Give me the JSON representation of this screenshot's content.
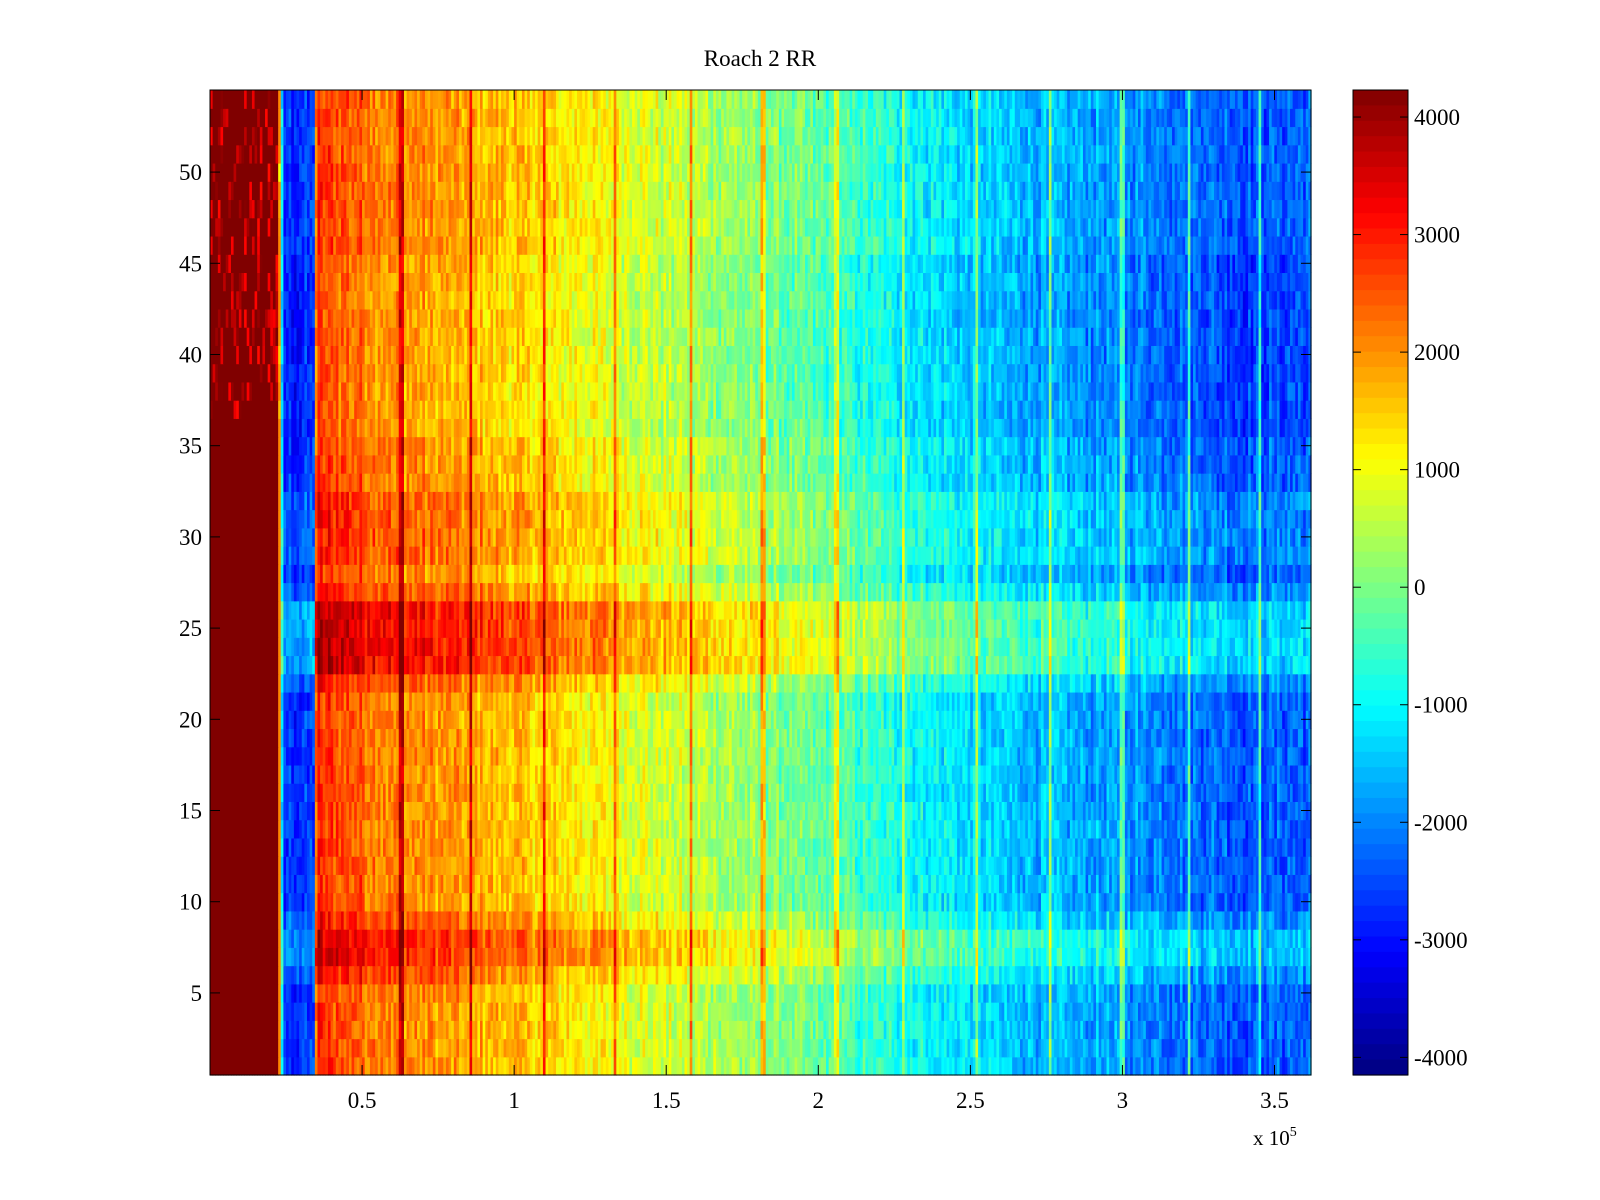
{
  "chart_data": {
    "type": "heatmap",
    "title": "Roach 2 RR",
    "xlabel": "",
    "ylabel": "",
    "x_multiplier_label": "x 10",
    "x_multiplier_exponent": "5",
    "xlim": [
      0,
      3.62
    ],
    "ylim": [
      0.5,
      54.5
    ],
    "x_ticks": [
      0.5,
      1,
      1.5,
      2,
      2.5,
      3,
      3.5
    ],
    "x_tick_labels": [
      "0.5",
      "1",
      "1.5",
      "2",
      "2.5",
      "3",
      "3.5"
    ],
    "y_ticks": [
      5,
      10,
      15,
      20,
      25,
      30,
      35,
      40,
      45,
      50
    ],
    "y_tick_labels": [
      "5",
      "10",
      "15",
      "20",
      "25",
      "30",
      "35",
      "40",
      "45",
      "50"
    ],
    "rows": 54,
    "colorbar": {
      "colormap": "jet",
      "range": [
        -4000,
        4000
      ],
      "ticks": [
        4000,
        3000,
        2000,
        1000,
        0,
        -1000,
        -2000,
        -3000,
        -4000
      ],
      "tick_labels": [
        "4000",
        "3000",
        "2000",
        "1000",
        "0",
        "-1000",
        "-2000",
        "-3000",
        "-4000"
      ]
    },
    "x_profile": {
      "description_units": "x in units of 10^5, value in colorbar units",
      "x": [
        0.0,
        0.22,
        0.23,
        0.24,
        0.34,
        0.35,
        0.45,
        0.6,
        0.85,
        1.1,
        1.4,
        1.7,
        2.0,
        2.3,
        2.6,
        2.9,
        3.2,
        3.4,
        3.62
      ],
      "values": [
        4200,
        4200,
        1500,
        -2600,
        -2600,
        2600,
        2400,
        2000,
        1700,
        1300,
        800,
        300,
        -300,
        -900,
        -1400,
        -1700,
        -2000,
        -2300,
        -2200
      ]
    },
    "row_offsets": [
      {
        "rows": [
          7,
          8
        ],
        "offset": 800
      },
      {
        "rows": [
          23,
          24,
          25,
          26
        ],
        "offset": 1000
      },
      {
        "rows": [
          6,
          9,
          22,
          27
        ],
        "offset": 350
      },
      {
        "rows": [
          29,
          30,
          31,
          32
        ],
        "offset": 300
      },
      {
        "rows": [
          36,
          37,
          38,
          39,
          40,
          41,
          42,
          43,
          44,
          45
        ],
        "offset": -200
      }
    ],
    "vertical_lines": {
      "x": [
        0.63,
        0.86,
        1.1,
        1.33,
        1.58,
        1.82,
        2.06,
        2.28,
        2.52,
        2.76,
        3.0,
        3.22,
        3.45
      ],
      "offset": 1400
    }
  }
}
